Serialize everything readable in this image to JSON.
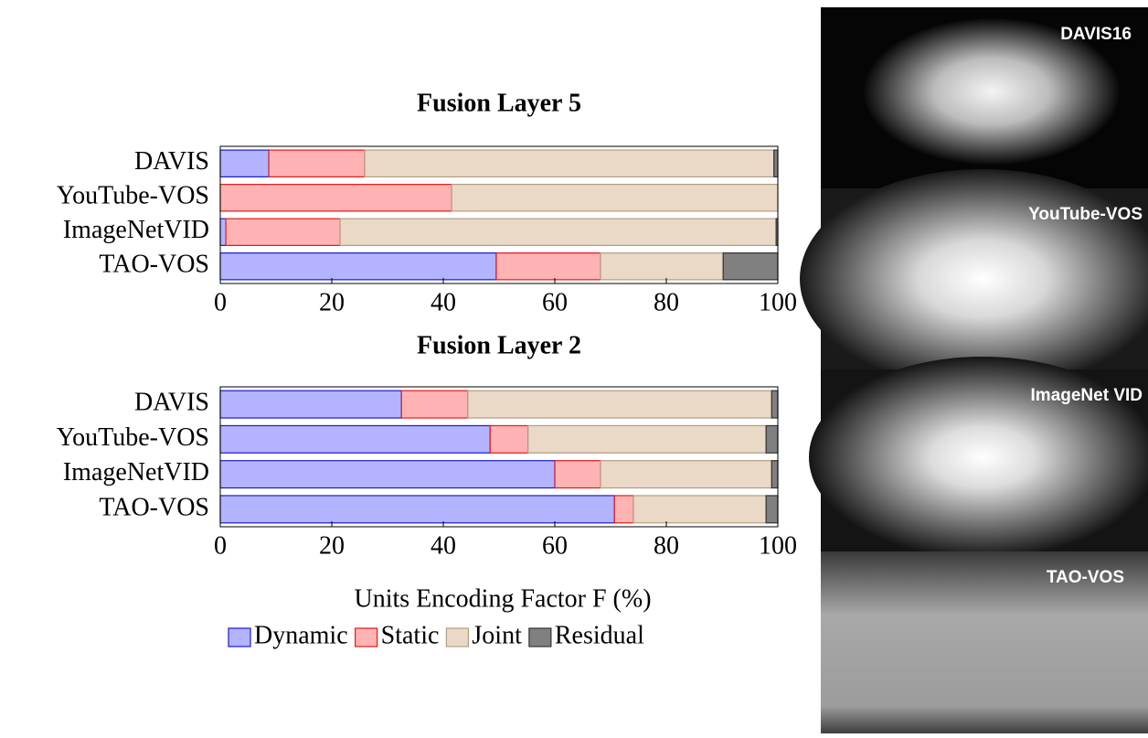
{
  "chart_data": [
    {
      "type": "bar",
      "orientation": "horizontal",
      "stacked": true,
      "title": "Fusion Layer 5",
      "categories": [
        "DAVIS",
        "YouTube-VOS",
        "ImageNetVID",
        "TAO-VOS"
      ],
      "series": [
        {
          "name": "Dynamic",
          "color": "#b3b3ff",
          "edgecolor": "#1a1acc",
          "values": [
            8.7,
            0,
            1.0,
            49.5
          ]
        },
        {
          "name": "Static",
          "color": "#ffb3b3",
          "edgecolor": "#e01a1a",
          "values": [
            17.2,
            41.5,
            20.5,
            18.7
          ]
        },
        {
          "name": "Joint",
          "color": "#ead9c6",
          "edgecolor": "#b39e86",
          "values": [
            73.4,
            58.5,
            78.2,
            22.0
          ]
        },
        {
          "name": "Residual",
          "color": "#808080",
          "edgecolor": "#333333",
          "values": [
            0.7,
            0,
            0.3,
            9.8
          ]
        }
      ],
      "xlim": [
        0,
        100
      ],
      "xticks": [
        0,
        20,
        40,
        60,
        80,
        100
      ]
    },
    {
      "type": "bar",
      "orientation": "horizontal",
      "stacked": true,
      "title": "Fusion Layer 2",
      "categories": [
        "DAVIS",
        "YouTube-VOS",
        "ImageNetVID",
        "TAO-VOS"
      ],
      "series": [
        {
          "name": "Dynamic",
          "color": "#b3b3ff",
          "edgecolor": "#1a1acc",
          "values": [
            32.5,
            48.4,
            60.0,
            70.7
          ]
        },
        {
          "name": "Static",
          "color": "#ffb3b3",
          "edgecolor": "#e01a1a",
          "values": [
            11.9,
            6.8,
            8.2,
            3.4
          ]
        },
        {
          "name": "Joint",
          "color": "#ead9c6",
          "edgecolor": "#b39e86",
          "values": [
            54.5,
            42.7,
            30.7,
            23.8
          ]
        },
        {
          "name": "Residual",
          "color": "#808080",
          "edgecolor": "#333333",
          "values": [
            1.1,
            2.1,
            1.1,
            2.1
          ]
        }
      ],
      "xlim": [
        0,
        100
      ],
      "xticks": [
        0,
        20,
        40,
        60,
        80,
        100
      ],
      "xlabel": "Units Encoding Factor F (%)"
    }
  ],
  "images": [
    {
      "label": "DAVIS16"
    },
    {
      "label": "YouTube-VOS"
    },
    {
      "label": "ImageNet VID"
    },
    {
      "label": "TAO-VOS"
    }
  ]
}
